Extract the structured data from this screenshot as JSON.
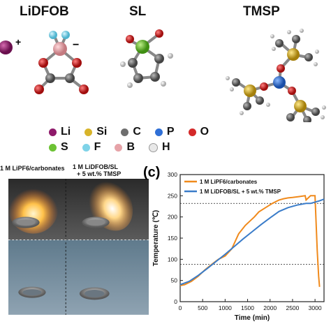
{
  "molecules": {
    "lidfob": "LiDFOB",
    "sl": "SL",
    "tmsp": "TMSP",
    "plus": "+",
    "minus": "−"
  },
  "legend": {
    "rows": [
      [
        {
          "label": "Li",
          "color": "#8e1a6a"
        },
        {
          "label": "Si",
          "color": "#d8b42a"
        },
        {
          "label": "C",
          "color": "#6e6e6e"
        },
        {
          "label": "P",
          "color": "#2f6fd6"
        },
        {
          "label": "O",
          "color": "#d42a2a"
        }
      ],
      [
        {
          "label": "S",
          "color": "#6cc233"
        },
        {
          "label": "F",
          "color": "#7fd3e8"
        },
        {
          "label": "B",
          "color": "#e6a3a8"
        },
        {
          "label": "H",
          "color": "#e8e8e8"
        }
      ]
    ]
  },
  "photo": {
    "label_left": "1 M LiPF6/carbonates",
    "label_right_line1": "1 M LiDFOB/SL",
    "label_right_line2": "+ 5 wt.% TMSP"
  },
  "panel_c": {
    "label": "(c)"
  },
  "chart_data": {
    "type": "line",
    "xlabel": "Time (min)",
    "ylabel": "Temperature (℃)",
    "xlim": [
      0,
      3200
    ],
    "ylim": [
      0,
      300
    ],
    "xticks": [
      0,
      500,
      1000,
      1500,
      2000,
      2500,
      3000
    ],
    "yticks": [
      0,
      50,
      100,
      150,
      200,
      250,
      300
    ],
    "reference_lines": [
      88,
      232
    ],
    "series": [
      {
        "name": "1 M LiPF6/carbonates",
        "color": "#f08a1c",
        "x": [
          0,
          100,
          250,
          400,
          550,
          700,
          850,
          1000,
          1150,
          1300,
          1450,
          1550,
          1650,
          1750,
          1900,
          2050,
          2200,
          2300,
          2400,
          2500,
          2650,
          2780,
          2800,
          2900,
          3000,
          3050,
          3080,
          3100
        ],
        "y": [
          38,
          40,
          48,
          60,
          75,
          88,
          100,
          108,
          125,
          160,
          180,
          190,
          200,
          212,
          222,
          232,
          240,
          243,
          245,
          246,
          248,
          250,
          240,
          250,
          250,
          120,
          60,
          35
        ]
      },
      {
        "name": "1 M LiDFOB/SL + 5 wt.% TMSP",
        "color": "#3a7cc9",
        "x": [
          0,
          200,
          400,
          600,
          800,
          1000,
          1200,
          1400,
          1600,
          1800,
          2000,
          2200,
          2400,
          2600,
          2800,
          2900,
          3000,
          3100,
          3200
        ],
        "y": [
          40,
          48,
          62,
          78,
          95,
          112,
          130,
          148,
          165,
          182,
          198,
          213,
          222,
          228,
          232,
          232,
          235,
          238,
          242
        ]
      }
    ]
  }
}
